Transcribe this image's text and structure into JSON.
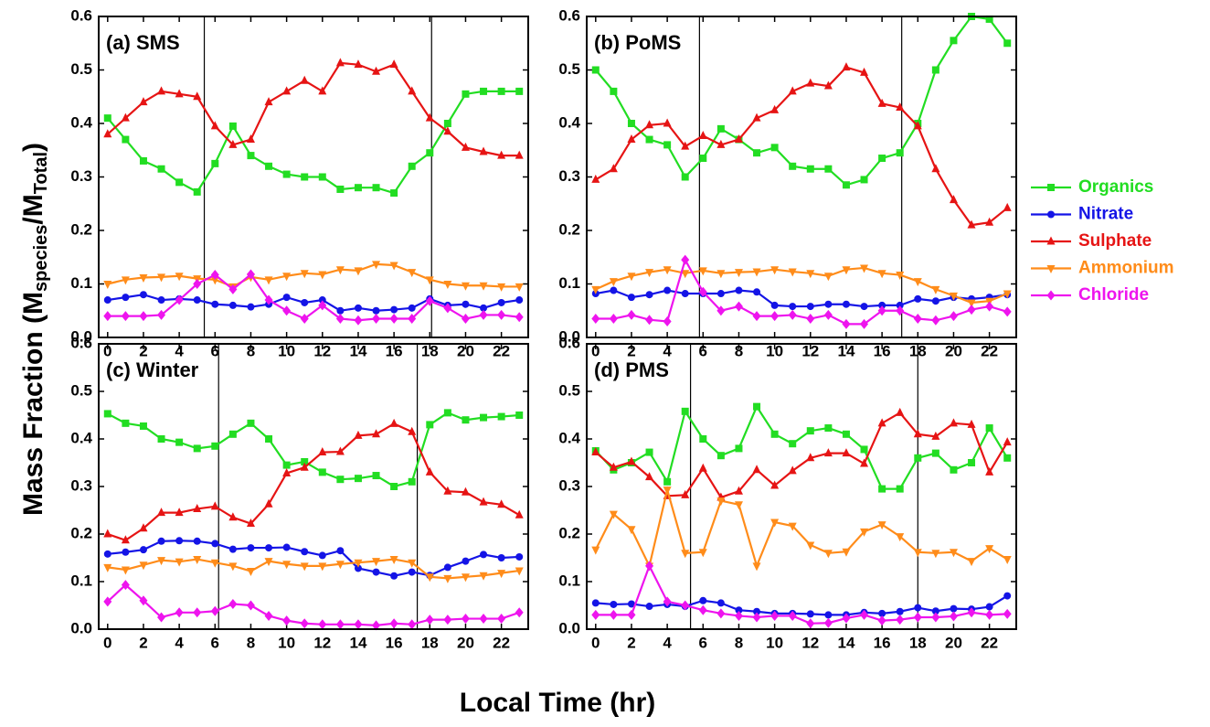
{
  "ylabel_parts": [
    "Mass Fraction (M",
    "species",
    "/M",
    "Total",
    ")"
  ],
  "xlabel": "Local Time (hr)",
  "chart_data": [
    {
      "type": "line",
      "title": "(a) SMS",
      "x": [
        0,
        1,
        2,
        3,
        4,
        5,
        6,
        7,
        8,
        9,
        10,
        11,
        12,
        13,
        14,
        15,
        16,
        17,
        18,
        19,
        20,
        21,
        22,
        23
      ],
      "xlim": [
        -0.5,
        23.5
      ],
      "xticks": [
        0,
        2,
        4,
        6,
        8,
        10,
        12,
        14,
        16,
        18,
        20,
        22
      ],
      "ylim": [
        0,
        0.6
      ],
      "yticks": [
        {
          "value": 0,
          "label": "0.0"
        },
        0.1,
        0.2,
        0.3,
        0.4,
        0.5,
        0.6
      ],
      "vlines": [
        5.4,
        18.1
      ],
      "series": [
        {
          "name": "Organics",
          "color": "#22dd22",
          "marker": "square",
          "values": [
            0.41,
            0.37,
            0.33,
            0.315,
            0.29,
            0.272,
            0.325,
            0.395,
            0.34,
            0.32,
            0.305,
            0.3,
            0.3,
            0.277,
            0.28,
            0.28,
            0.27,
            0.32,
            0.345,
            0.4,
            0.455,
            0.46,
            0.46,
            0.46
          ]
        },
        {
          "name": "Nitrate",
          "color": "#1414e6",
          "marker": "circle",
          "values": [
            0.07,
            0.075,
            0.08,
            0.07,
            0.072,
            0.07,
            0.062,
            0.06,
            0.057,
            0.062,
            0.075,
            0.065,
            0.07,
            0.05,
            0.055,
            0.05,
            0.052,
            0.055,
            0.072,
            0.06,
            0.062,
            0.055,
            0.065,
            0.07
          ]
        },
        {
          "name": "Sulphate",
          "color": "#e61414",
          "marker": "tri-up",
          "values": [
            0.38,
            0.41,
            0.44,
            0.46,
            0.455,
            0.45,
            0.395,
            0.36,
            0.37,
            0.44,
            0.46,
            0.48,
            0.46,
            0.513,
            0.51,
            0.497,
            0.51,
            0.46,
            0.41,
            0.385,
            0.355,
            0.347,
            0.34,
            0.34
          ]
        },
        {
          "name": "Ammonium",
          "color": "#ff8c1a",
          "marker": "tri-down",
          "values": [
            0.1,
            0.108,
            0.112,
            0.113,
            0.115,
            0.11,
            0.108,
            0.095,
            0.113,
            0.108,
            0.115,
            0.12,
            0.118,
            0.127,
            0.125,
            0.137,
            0.135,
            0.122,
            0.108,
            0.1,
            0.097,
            0.097,
            0.095,
            0.095
          ]
        },
        {
          "name": "Chloride",
          "color": "#ee14ee",
          "marker": "diamond",
          "values": [
            0.04,
            0.04,
            0.04,
            0.042,
            0.07,
            0.1,
            0.117,
            0.09,
            0.118,
            0.07,
            0.05,
            0.035,
            0.06,
            0.035,
            0.032,
            0.035,
            0.035,
            0.035,
            0.068,
            0.055,
            0.035,
            0.042,
            0.042,
            0.038
          ]
        }
      ]
    },
    {
      "type": "line",
      "title": "(b) PoMS",
      "x": [
        0,
        1,
        2,
        3,
        4,
        5,
        6,
        7,
        8,
        9,
        10,
        11,
        12,
        13,
        14,
        15,
        16,
        17,
        18,
        19,
        20,
        21,
        22,
        23
      ],
      "xlim": [
        -0.5,
        23.5
      ],
      "xticks": [
        0,
        2,
        4,
        6,
        8,
        10,
        12,
        14,
        16,
        18,
        20,
        22
      ],
      "ylim": [
        0,
        0.6
      ],
      "yticks": [
        {
          "value": 0,
          "label": "0.0"
        },
        0.1,
        0.2,
        0.3,
        0.4,
        0.5,
        0.6
      ],
      "vlines": [
        5.8,
        17.1
      ],
      "series": [
        {
          "name": "Organics",
          "color": "#22dd22",
          "marker": "square",
          "values": [
            0.5,
            0.46,
            0.4,
            0.37,
            0.36,
            0.3,
            0.335,
            0.39,
            0.37,
            0.345,
            0.355,
            0.32,
            0.315,
            0.315,
            0.285,
            0.295,
            0.335,
            0.345,
            0.4,
            0.5,
            0.555,
            0.6,
            0.595,
            0.55
          ]
        },
        {
          "name": "Nitrate",
          "color": "#1414e6",
          "marker": "circle",
          "values": [
            0.082,
            0.088,
            0.075,
            0.08,
            0.088,
            0.082,
            0.082,
            0.082,
            0.088,
            0.085,
            0.06,
            0.058,
            0.058,
            0.062,
            0.062,
            0.058,
            0.06,
            0.06,
            0.072,
            0.068,
            0.075,
            0.072,
            0.075,
            0.08
          ]
        },
        {
          "name": "Sulphate",
          "color": "#e61414",
          "marker": "tri-up",
          "values": [
            0.295,
            0.315,
            0.37,
            0.397,
            0.4,
            0.357,
            0.377,
            0.36,
            0.37,
            0.41,
            0.425,
            0.46,
            0.475,
            0.47,
            0.505,
            0.495,
            0.437,
            0.43,
            0.395,
            0.315,
            0.257,
            0.21,
            0.215,
            0.242
          ]
        },
        {
          "name": "Ammonium",
          "color": "#ff8c1a",
          "marker": "tri-down",
          "values": [
            0.09,
            0.105,
            0.115,
            0.122,
            0.127,
            0.12,
            0.125,
            0.12,
            0.122,
            0.123,
            0.127,
            0.123,
            0.12,
            0.115,
            0.127,
            0.13,
            0.12,
            0.117,
            0.105,
            0.09,
            0.078,
            0.065,
            0.068,
            0.082
          ]
        },
        {
          "name": "Chloride",
          "color": "#ee14ee",
          "marker": "diamond",
          "values": [
            0.035,
            0.035,
            0.042,
            0.033,
            0.03,
            0.145,
            0.085,
            0.05,
            0.058,
            0.04,
            0.04,
            0.042,
            0.035,
            0.042,
            0.025,
            0.025,
            0.05,
            0.05,
            0.035,
            0.032,
            0.04,
            0.052,
            0.058,
            0.048
          ]
        }
      ]
    },
    {
      "type": "line",
      "title": "(c) Winter",
      "x": [
        0,
        1,
        2,
        3,
        4,
        5,
        6,
        7,
        8,
        9,
        10,
        11,
        12,
        13,
        14,
        15,
        16,
        17,
        18,
        19,
        20,
        21,
        22,
        23
      ],
      "xlim": [
        -0.5,
        23.5
      ],
      "xticks": [
        0,
        2,
        4,
        6,
        8,
        10,
        12,
        14,
        16,
        18,
        20,
        22
      ],
      "ylim": [
        0,
        0.6
      ],
      "yticks": [
        {
          "value": 0,
          "label": "0.0"
        },
        0.1,
        0.2,
        0.3,
        0.4,
        0.5,
        0.6
      ],
      "vlines": [
        6.2,
        17.3
      ],
      "series": [
        {
          "name": "Organics",
          "color": "#22dd22",
          "marker": "square",
          "values": [
            0.453,
            0.433,
            0.427,
            0.4,
            0.393,
            0.38,
            0.385,
            0.41,
            0.433,
            0.4,
            0.345,
            0.352,
            0.33,
            0.315,
            0.317,
            0.323,
            0.3,
            0.31,
            0.43,
            0.455,
            0.44,
            0.445,
            0.447,
            0.45
          ]
        },
        {
          "name": "Nitrate",
          "color": "#1414e6",
          "marker": "circle",
          "values": [
            0.158,
            0.162,
            0.167,
            0.185,
            0.186,
            0.185,
            0.18,
            0.168,
            0.171,
            0.171,
            0.172,
            0.163,
            0.155,
            0.165,
            0.128,
            0.12,
            0.112,
            0.12,
            0.113,
            0.13,
            0.143,
            0.157,
            0.15,
            0.152
          ]
        },
        {
          "name": "Sulphate",
          "color": "#e61414",
          "marker": "tri-up",
          "values": [
            0.2,
            0.187,
            0.212,
            0.245,
            0.245,
            0.253,
            0.258,
            0.235,
            0.222,
            0.263,
            0.328,
            0.34,
            0.372,
            0.373,
            0.407,
            0.41,
            0.432,
            0.415,
            0.33,
            0.29,
            0.288,
            0.267,
            0.262,
            0.24
          ]
        },
        {
          "name": "Ammonium",
          "color": "#ff8c1a",
          "marker": "tri-down",
          "values": [
            0.13,
            0.125,
            0.135,
            0.145,
            0.142,
            0.147,
            0.14,
            0.133,
            0.122,
            0.143,
            0.137,
            0.133,
            0.133,
            0.137,
            0.14,
            0.143,
            0.147,
            0.14,
            0.11,
            0.107,
            0.11,
            0.113,
            0.118,
            0.123
          ]
        },
        {
          "name": "Chloride",
          "color": "#ee14ee",
          "marker": "diamond",
          "values": [
            0.058,
            0.093,
            0.06,
            0.025,
            0.035,
            0.035,
            0.038,
            0.053,
            0.05,
            0.028,
            0.018,
            0.012,
            0.01,
            0.01,
            0.01,
            0.008,
            0.012,
            0.01,
            0.02,
            0.02,
            0.022,
            0.022,
            0.022,
            0.035
          ]
        }
      ]
    },
    {
      "type": "line",
      "title": "(d) PMS",
      "x": [
        0,
        1,
        2,
        3,
        4,
        5,
        6,
        7,
        8,
        9,
        10,
        11,
        12,
        13,
        14,
        15,
        16,
        17,
        18,
        19,
        20,
        21,
        22,
        23
      ],
      "xlim": [
        -0.5,
        23.5
      ],
      "xticks": [
        0,
        2,
        4,
        6,
        8,
        10,
        12,
        14,
        16,
        18,
        20,
        22
      ],
      "ylim": [
        0,
        0.6
      ],
      "yticks": [
        {
          "value": 0,
          "label": "0.0"
        },
        0.1,
        0.2,
        0.3,
        0.4,
        0.5,
        0.6
      ],
      "vlines": [
        5.3,
        18.0
      ],
      "series": [
        {
          "name": "Organics",
          "color": "#22dd22",
          "marker": "square",
          "values": [
            0.375,
            0.335,
            0.35,
            0.372,
            0.31,
            0.458,
            0.4,
            0.365,
            0.38,
            0.468,
            0.41,
            0.39,
            0.417,
            0.423,
            0.41,
            0.378,
            0.295,
            0.295,
            0.36,
            0.37,
            0.335,
            0.35,
            0.423,
            0.36
          ]
        },
        {
          "name": "Nitrate",
          "color": "#1414e6",
          "marker": "circle",
          "values": [
            0.055,
            0.052,
            0.053,
            0.048,
            0.052,
            0.048,
            0.06,
            0.055,
            0.04,
            0.037,
            0.033,
            0.033,
            0.032,
            0.03,
            0.03,
            0.035,
            0.033,
            0.037,
            0.045,
            0.038,
            0.043,
            0.042,
            0.047,
            0.07
          ]
        },
        {
          "name": "Sulphate",
          "color": "#e61414",
          "marker": "tri-up",
          "values": [
            0.372,
            0.34,
            0.352,
            0.32,
            0.28,
            0.282,
            0.338,
            0.277,
            0.29,
            0.335,
            0.302,
            0.333,
            0.36,
            0.37,
            0.37,
            0.348,
            0.433,
            0.455,
            0.41,
            0.405,
            0.433,
            0.43,
            0.33,
            0.393
          ]
        },
        {
          "name": "Ammonium",
          "color": "#ff8c1a",
          "marker": "tri-down",
          "values": [
            0.167,
            0.242,
            0.21,
            0.133,
            0.293,
            0.16,
            0.162,
            0.27,
            0.262,
            0.133,
            0.225,
            0.217,
            0.177,
            0.16,
            0.163,
            0.205,
            0.22,
            0.195,
            0.162,
            0.16,
            0.162,
            0.143,
            0.17,
            0.147
          ]
        },
        {
          "name": "Chloride",
          "color": "#ee14ee",
          "marker": "diamond",
          "values": [
            0.03,
            0.03,
            0.03,
            0.133,
            0.058,
            0.05,
            0.04,
            0.033,
            0.028,
            0.025,
            0.028,
            0.028,
            0.012,
            0.013,
            0.023,
            0.03,
            0.018,
            0.02,
            0.025,
            0.025,
            0.027,
            0.035,
            0.03,
            0.032
          ]
        }
      ]
    }
  ]
}
